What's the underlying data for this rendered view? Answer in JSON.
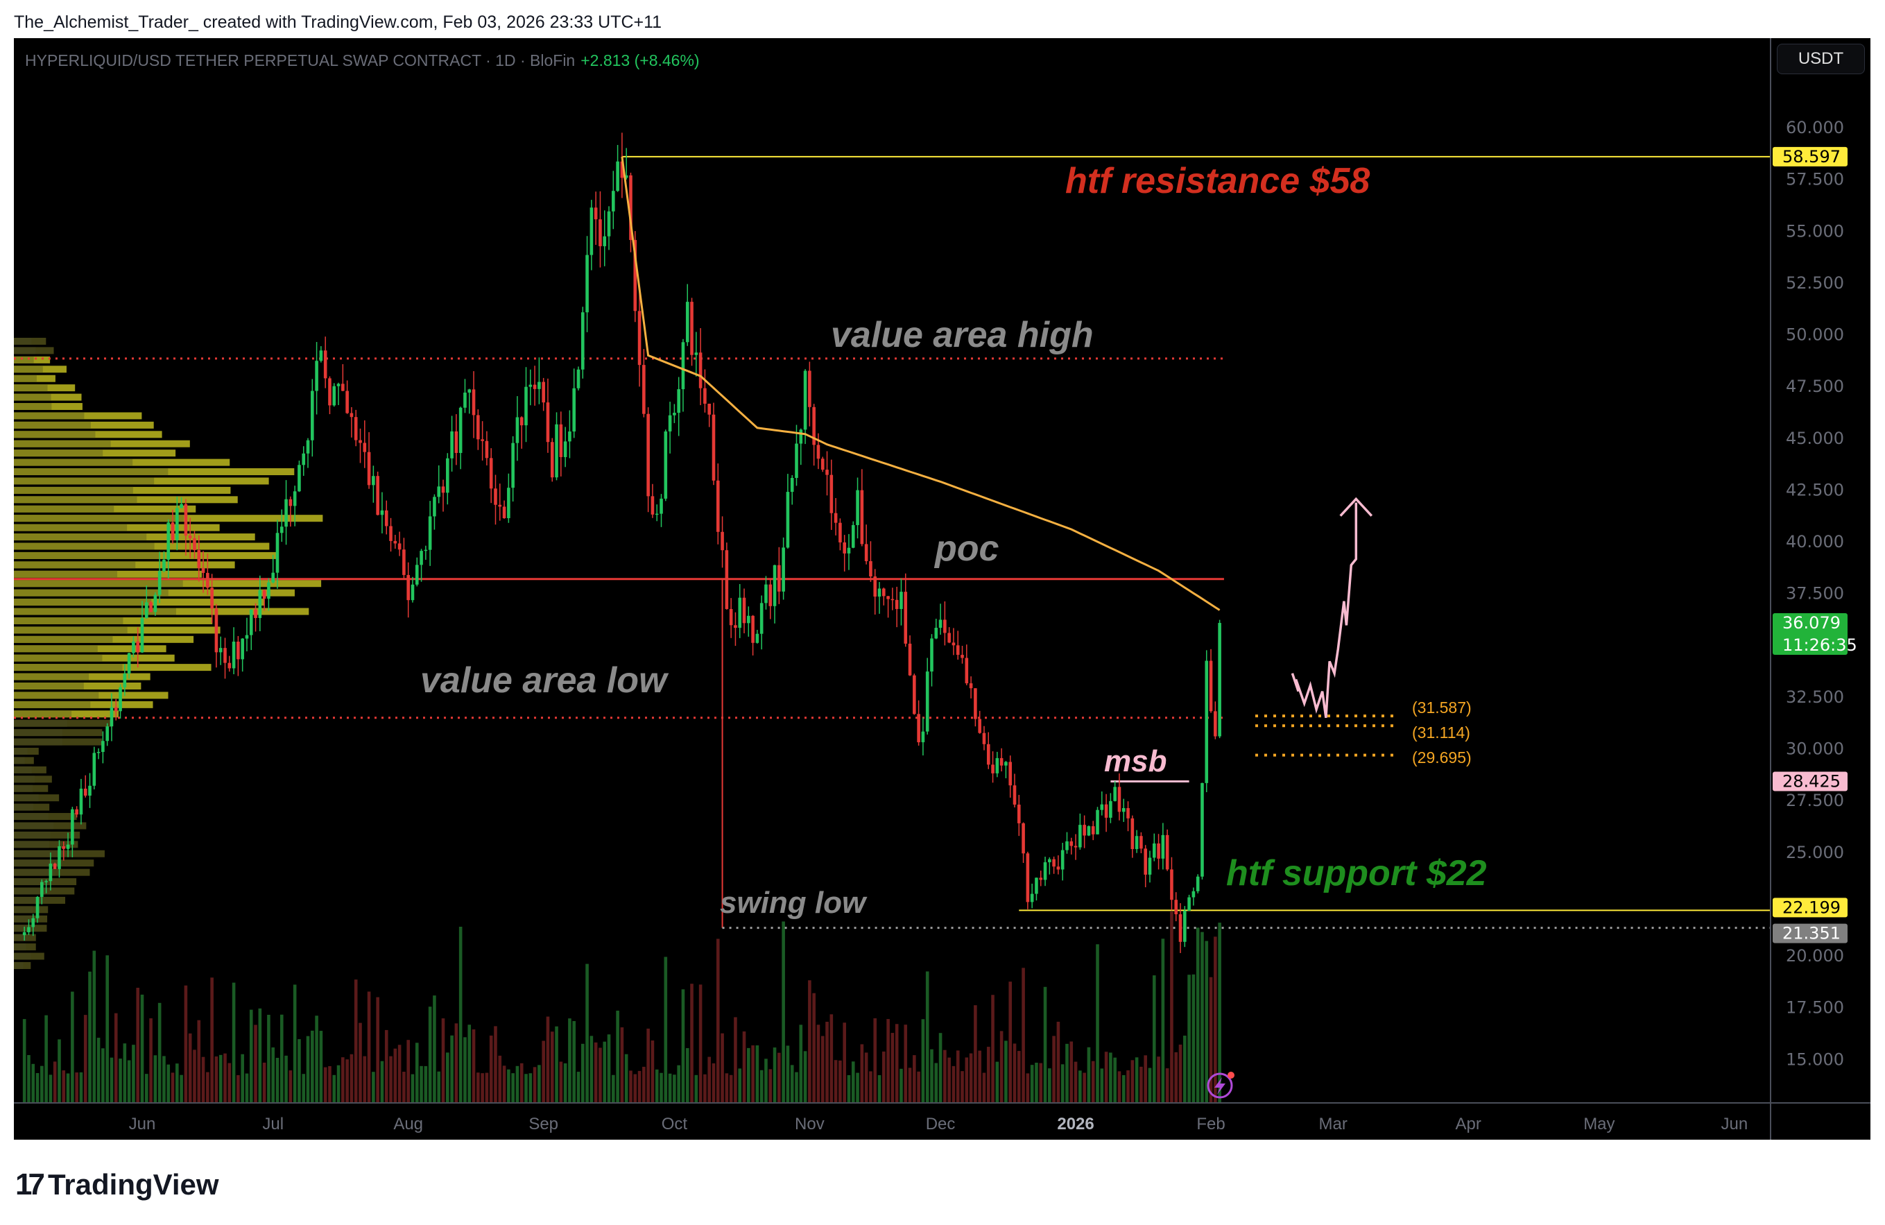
{
  "credit": "The_Alchemist_Trader_ created with TradingView.com, Feb 03, 2026 23:33 UTC+11",
  "symbol": {
    "title": "HYPERLIQUID/USD TETHER PERPETUAL SWAP CONTRACT · 1D · BloFin",
    "change": "+2.813 (+8.46%)"
  },
  "currency_button": "USDT",
  "logo": {
    "text": "TradingView",
    "mark": "17"
  },
  "colors": {
    "up": "#22c55e",
    "down": "#e53935",
    "ma": "#f5b041",
    "resistance": "#ffeb3b",
    "poc": "#e53935",
    "accent_pink": "#f8bbd0",
    "support_text": "#1e8e1e",
    "resistance_text": "#d32f1f"
  },
  "icons": {
    "alert": "lightning-icon"
  },
  "price_axis": {
    "ticks": [
      "60.000",
      "57.500",
      "55.000",
      "52.500",
      "50.000",
      "47.500",
      "45.000",
      "42.500",
      "40.000",
      "37.500",
      "32.500",
      "30.000",
      "27.500",
      "25.000",
      "20.000",
      "17.500",
      "15.000"
    ],
    "labels": {
      "resistance": "58.597",
      "last_price": "36.079",
      "countdown": "11:26:35",
      "msb": "28.425",
      "support": "22.199",
      "swing_low": "21.351"
    }
  },
  "time_axis": [
    "Jun",
    "Jul",
    "Aug",
    "Sep",
    "Oct",
    "Nov",
    "Dec",
    "2026",
    "Feb",
    "Mar",
    "Apr",
    "May",
    "Jun"
  ],
  "annotations": {
    "htf_resistance": "htf resistance $58",
    "value_area_high": "value area high",
    "poc": "poc",
    "value_area_low": "value area low",
    "msb": "msb",
    "swing_low": "swing low",
    "htf_support": "htf support $22",
    "target_1": "(31.587)",
    "target_2": "(31.114)",
    "target_3": "(29.695)"
  },
  "chart_data": {
    "type": "candlestick",
    "interval": "1D",
    "ylim": [
      13,
      62
    ],
    "y_scale": "linear",
    "grid": false,
    "price_path_approx": [
      [
        "2025-05-05",
        21
      ],
      [
        "2025-05-15",
        26
      ],
      [
        "2025-05-22",
        30
      ],
      [
        "2025-06-01",
        36
      ],
      [
        "2025-06-10",
        42
      ],
      [
        "2025-06-20",
        33.5
      ],
      [
        "2025-07-01",
        39
      ],
      [
        "2025-07-12",
        48.5
      ],
      [
        "2025-07-20",
        45
      ],
      [
        "2025-08-01",
        37.5
      ],
      [
        "2025-08-15",
        47.5
      ],
      [
        "2025-08-22",
        41
      ],
      [
        "2025-08-29",
        48.5
      ],
      [
        "2025-09-03",
        44
      ],
      [
        "2025-09-08",
        47
      ],
      [
        "2025-09-12",
        57
      ],
      [
        "2025-09-15",
        53.5
      ],
      [
        "2025-09-19",
        59
      ],
      [
        "2025-09-22",
        51.5
      ],
      [
        "2025-09-26",
        40.5
      ],
      [
        "2025-10-01",
        47
      ],
      [
        "2025-10-04",
        50.5
      ],
      [
        "2025-10-09",
        46
      ],
      [
        "2025-10-13",
        37
      ],
      [
        "2025-10-19",
        36
      ],
      [
        "2025-10-25",
        38.5
      ],
      [
        "2025-10-31",
        47.5
      ],
      [
        "2025-11-04",
        44
      ],
      [
        "2025-11-08",
        39.5
      ],
      [
        "2025-11-12",
        41.5
      ],
      [
        "2025-11-16",
        37.5
      ],
      [
        "2025-11-22",
        37
      ],
      [
        "2025-11-26",
        30
      ],
      [
        "2025-11-30",
        36
      ],
      [
        "2025-12-05",
        35
      ],
      [
        "2025-12-11",
        29.5
      ],
      [
        "2025-12-17",
        28.5
      ],
      [
        "2025-12-21",
        23.2
      ],
      [
        "2026-01-01",
        25.5
      ],
      [
        "2026-01-10",
        27.8
      ],
      [
        "2026-01-17",
        24.3
      ],
      [
        "2026-01-21",
        25.5
      ],
      [
        "2026-01-25",
        21.1
      ],
      [
        "2026-01-29",
        23.5
      ],
      [
        "2026-01-31",
        34
      ],
      [
        "2026-02-02",
        30.5
      ],
      [
        "2026-02-03",
        36.079
      ]
    ],
    "moving_average_approx": [
      [
        "2025-09-19",
        58.6
      ],
      [
        "2025-09-25",
        49
      ],
      [
        "2025-10-07",
        48
      ],
      [
        "2025-10-20",
        45.5
      ],
      [
        "2025-10-31",
        45.2
      ],
      [
        "2025-11-05",
        44.7
      ],
      [
        "2025-12-01",
        42.9
      ],
      [
        "2025-12-31",
        40.6
      ],
      [
        "2026-01-20",
        38.6
      ],
      [
        "2026-02-03",
        36.7
      ]
    ],
    "levels": {
      "htf_resistance": 58.597,
      "value_area_high": 48.85,
      "poc": 38.2,
      "value_area_low": 31.5,
      "msb": 28.425,
      "htf_support": 22.199,
      "swing_low": 21.351,
      "targets": [
        31.587,
        31.114,
        29.695
      ]
    }
  }
}
